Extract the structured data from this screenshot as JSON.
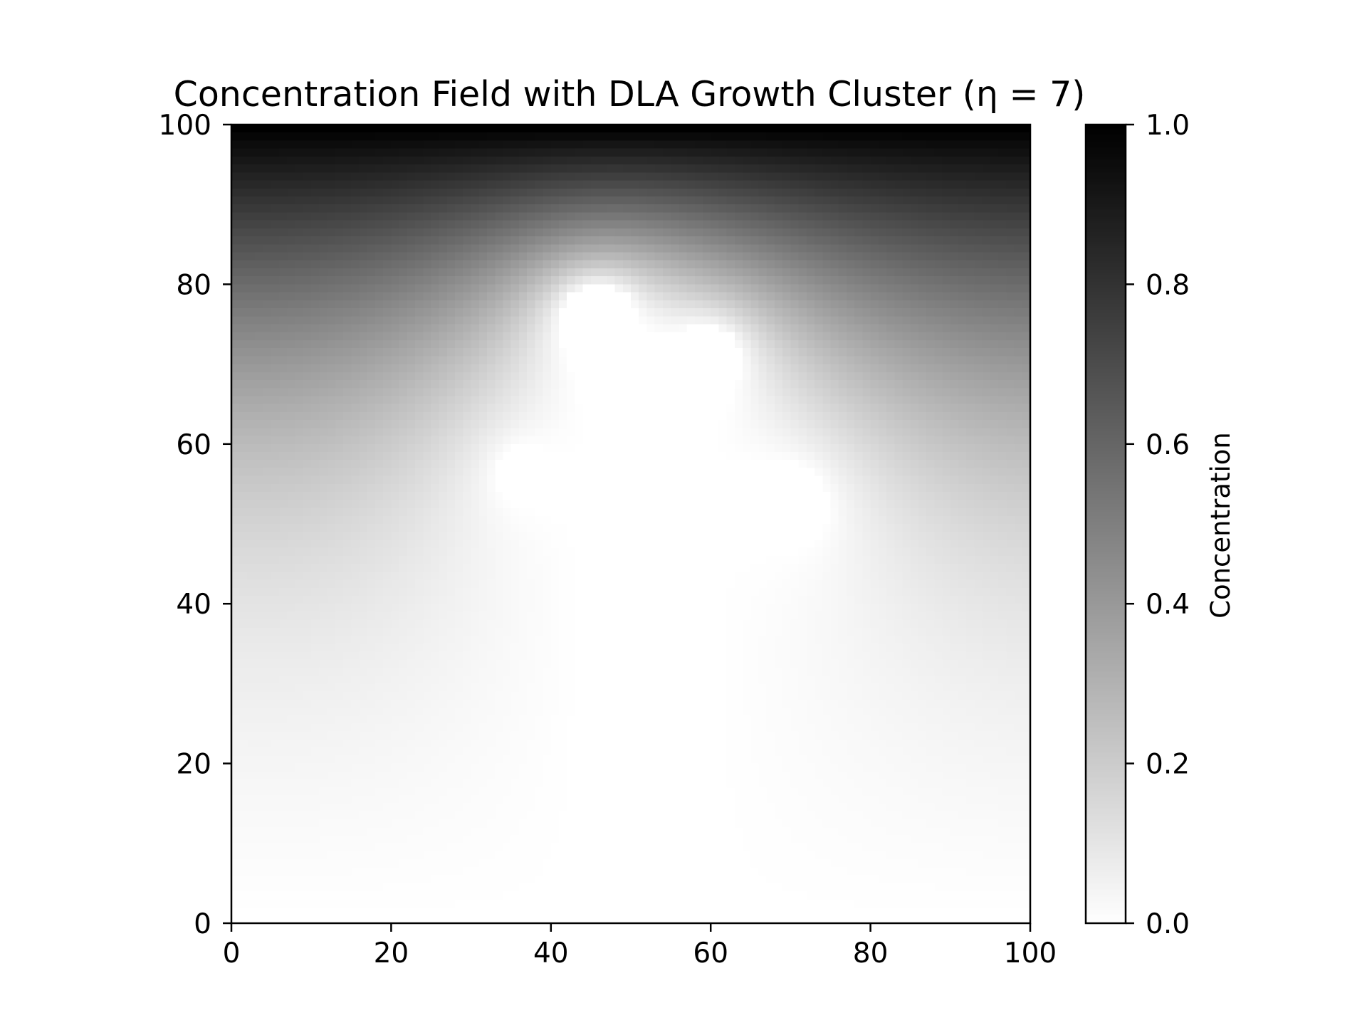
{
  "chart_data": {
    "type": "heatmap",
    "title": "Concentration Field with DLA Growth Cluster (η = 7)",
    "xlabel": "",
    "ylabel": "",
    "xlim": [
      0,
      100
    ],
    "ylim": [
      0,
      100
    ],
    "x_ticks": [
      "0",
      "20",
      "40",
      "60",
      "80",
      "100"
    ],
    "y_ticks": [
      "0",
      "20",
      "40",
      "60",
      "80",
      "100"
    ],
    "grid_resolution": [
      100,
      100
    ],
    "colormap": "gray_r",
    "colormap_low_color": "#ffffff",
    "colormap_high_color": "#000000",
    "colorbar": {
      "label": "Concentration",
      "range": [
        0.0,
        1.0
      ],
      "ticks": [
        "0.0",
        "0.2",
        "0.4",
        "0.6",
        "0.8",
        "1.0"
      ],
      "placement": "right"
    },
    "boundary_conditions": {
      "top_row_concentration": 1.0,
      "bottom_row_concentration": 0.0
    },
    "cluster": {
      "seed": [
        52,
        0
      ],
      "extent_x": [
        37,
        69
      ],
      "extent_y": [
        0,
        75
      ],
      "tips": [
        [
          46,
          75
        ],
        [
          59,
          70
        ],
        [
          37,
          56
        ],
        [
          69,
          52
        ]
      ],
      "interior_concentration": 0.0
    },
    "field_profile": [
      {
        "y": 100,
        "value_at_side_edges": 1.0,
        "value_above_cluster": 1.0
      },
      {
        "y": 90,
        "value_at_side_edges": 0.87,
        "value_above_cluster": 0.78
      },
      {
        "y": 80,
        "value_at_side_edges": 0.66,
        "value_above_cluster": 0.45
      },
      {
        "y": 70,
        "value_at_side_edges": 0.5,
        "value_above_cluster": 0.0
      },
      {
        "y": 60,
        "value_at_side_edges": 0.38,
        "value_above_cluster": 0.0
      },
      {
        "y": 40,
        "value_at_side_edges": 0.16,
        "value_above_cluster": 0.0
      },
      {
        "y": 20,
        "value_at_side_edges": 0.06,
        "value_above_cluster": 0.0
      },
      {
        "y": 0,
        "value_at_side_edges": 0.0,
        "value_above_cluster": 0.0
      }
    ]
  }
}
